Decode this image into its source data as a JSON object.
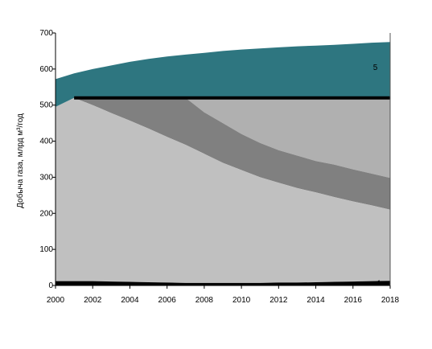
{
  "chart_data": {
    "type": "area",
    "title": "",
    "xlabel": "",
    "ylabel": "Добыча газа, млрд м³/год",
    "xlim": [
      2000,
      2018
    ],
    "ylim": [
      0,
      700
    ],
    "x_ticks": [
      "2000",
      "2002",
      "2004",
      "2006",
      "2008",
      "2010",
      "2012",
      "2014",
      "2016",
      "2018"
    ],
    "y_ticks": [
      "0",
      "100",
      "200",
      "300",
      "400",
      "500",
      "600",
      "700"
    ],
    "grid": false,
    "legend": "none",
    "series": [
      {
        "label": "5",
        "color": "#2e7680",
        "x": [
          2000,
          2001,
          2002,
          2003,
          2004,
          2005,
          2006,
          2007,
          2008,
          2009,
          2010,
          2011,
          2012,
          2013,
          2014,
          2015,
          2016,
          2017,
          2018
        ],
        "lower": [
          495,
          520,
          520,
          520,
          520,
          520,
          520,
          520,
          520,
          520,
          520,
          520,
          520,
          520,
          520,
          520,
          520,
          520,
          520
        ],
        "upper": [
          572,
          588,
          600,
          610,
          620,
          628,
          635,
          640,
          645,
          650,
          654,
          657,
          660,
          663,
          665,
          667,
          670,
          673,
          675
        ]
      },
      {
        "label": "",
        "color": "#b0b0b0",
        "x": [
          2000,
          2001,
          2002,
          2003,
          2004,
          2005,
          2006,
          2007,
          2008,
          2009,
          2010,
          2011,
          2012,
          2013,
          2014,
          2015,
          2016,
          2017,
          2018
        ],
        "lower": [
          495,
          520,
          520,
          520,
          520,
          520,
          520,
          520,
          480,
          450,
          420,
          395,
          375,
          360,
          345,
          335,
          322,
          310,
          298
        ],
        "upper": [
          495,
          520,
          520,
          520,
          520,
          520,
          520,
          520,
          520,
          520,
          520,
          520,
          520,
          520,
          520,
          520,
          520,
          520,
          520
        ]
      },
      {
        "label": "",
        "color": "#808080",
        "x": [
          2000,
          2001,
          2002,
          2003,
          2004,
          2005,
          2006,
          2007,
          2008,
          2009,
          2010,
          2011,
          2012,
          2013,
          2014,
          2015,
          2016,
          2017,
          2018
        ],
        "lower": [
          495,
          520,
          500,
          478,
          457,
          435,
          412,
          390,
          365,
          340,
          320,
          300,
          285,
          270,
          258,
          245,
          233,
          222,
          210
        ],
        "upper": [
          495,
          520,
          520,
          520,
          520,
          520,
          520,
          520,
          480,
          450,
          420,
          395,
          375,
          360,
          345,
          335,
          322,
          310,
          298
        ]
      },
      {
        "label": "",
        "color": "#c0c0c0",
        "x": [
          2000,
          2001,
          2002,
          2003,
          2004,
          2005,
          2006,
          2007,
          2008,
          2009,
          2010,
          2011,
          2012,
          2013,
          2014,
          2015,
          2016,
          2017,
          2018
        ],
        "lower": [
          12,
          12,
          12,
          11,
          10,
          9,
          8,
          7,
          7,
          7,
          7,
          7,
          8,
          8,
          9,
          10,
          11,
          12,
          13
        ],
        "upper": [
          495,
          520,
          500,
          478,
          457,
          435,
          412,
          390,
          365,
          340,
          320,
          300,
          285,
          270,
          258,
          245,
          233,
          222,
          210
        ]
      },
      {
        "label": "1",
        "color": "#000000",
        "x": [
          2000,
          2001,
          2002,
          2003,
          2004,
          2005,
          2006,
          2007,
          2008,
          2009,
          2010,
          2011,
          2012,
          2013,
          2014,
          2015,
          2016,
          2017,
          2018
        ],
        "lower": [
          -2,
          -2,
          -2,
          -2,
          -2,
          -2,
          -2,
          -2,
          -2,
          -2,
          -2,
          -2,
          -2,
          -2,
          -2,
          -2,
          -2,
          -2,
          -2
        ],
        "upper": [
          12,
          12,
          12,
          11,
          10,
          9,
          8,
          7,
          7,
          7,
          7,
          7,
          8,
          8,
          9,
          10,
          11,
          12,
          13
        ]
      }
    ],
    "reference_line": {
      "from_x": 2001,
      "to_x": 2018,
      "y": 520,
      "color": "#000000"
    }
  }
}
